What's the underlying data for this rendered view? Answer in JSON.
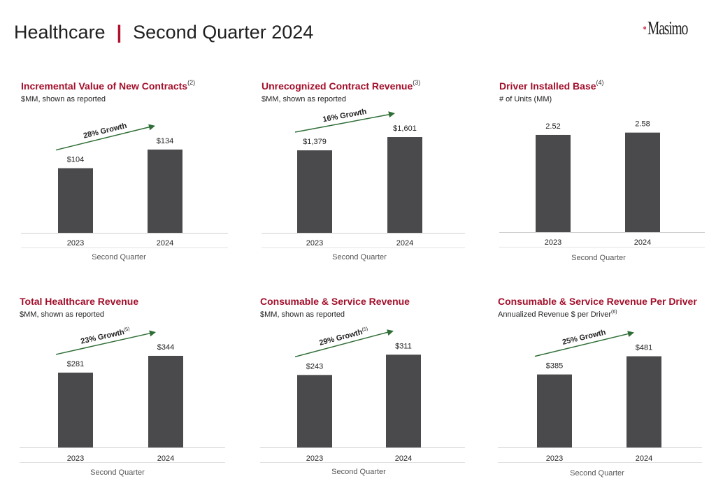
{
  "header": {
    "title": "Healthcare",
    "separator": "|",
    "subtitle": "Second Quarter 2024"
  },
  "logo": {
    "text": "Masimo",
    "icon": "masimo-logo-icon"
  },
  "colors": {
    "bar": "#4a4a4c",
    "title": "#a30f2b",
    "arrow": "#2f6e36",
    "axis": "#cfcfcf"
  },
  "chart_data": [
    {
      "type": "bar",
      "title": "Incremental Value of New Contracts",
      "title_sup": "(2)",
      "subtitle": "$MM, shown as reported",
      "subtitle_sup": "",
      "categories": [
        "2023",
        "2024"
      ],
      "values": [
        104,
        134
      ],
      "labels": [
        "$104",
        "$134"
      ],
      "xlabel": "Second Quarter",
      "growth": "28% Growth",
      "growth_sup": "",
      "ylim": [
        0,
        180
      ]
    },
    {
      "type": "bar",
      "title": "Unrecognized Contract Revenue",
      "title_sup": "(3)",
      "subtitle": "$MM, shown as reported",
      "subtitle_sup": "",
      "categories": [
        "2023",
        "2024"
      ],
      "values": [
        1379,
        1601
      ],
      "labels": [
        "$1,379",
        "$1,601"
      ],
      "xlabel": "Second Quarter",
      "growth": "16% Growth",
      "growth_sup": "",
      "ylim": [
        0,
        1870
      ]
    },
    {
      "type": "bar",
      "title": "Driver Installed Base",
      "title_sup": "(4)",
      "subtitle": "# of Units (MM)",
      "subtitle_sup": "",
      "categories": [
        "2023",
        "2024"
      ],
      "values": [
        2.52,
        2.58
      ],
      "labels": [
        "2.52",
        "2.58"
      ],
      "xlabel": "Second Quarter",
      "growth": "",
      "growth_sup": "",
      "ylim": [
        0,
        2.9
      ]
    },
    {
      "type": "bar",
      "title": "Total Healthcare Revenue",
      "title_sup": "",
      "subtitle": "$MM, shown as reported",
      "subtitle_sup": "",
      "categories": [
        "2023",
        "2024"
      ],
      "values": [
        281,
        344
      ],
      "labels": [
        "$281",
        "$344"
      ],
      "xlabel": "Second Quarter",
      "growth": "23% Growth",
      "growth_sup": "(5)",
      "ylim": [
        0,
        420
      ]
    },
    {
      "type": "bar",
      "title": "Consumable & Service Revenue",
      "title_sup": "",
      "subtitle": "$MM, shown as reported",
      "subtitle_sup": "",
      "categories": [
        "2023",
        "2024"
      ],
      "values": [
        243,
        311
      ],
      "labels": [
        "$243",
        "$311"
      ],
      "xlabel": "Second Quarter",
      "growth": "29% Growth",
      "growth_sup": "(5)",
      "ylim": [
        0,
        375
      ]
    },
    {
      "type": "bar",
      "title": "Consumable & Service Revenue Per Driver",
      "title_sup": "",
      "subtitle": "Annualized Revenue $ per Driver",
      "subtitle_sup": "(6)",
      "categories": [
        "2023",
        "2024"
      ],
      "values": [
        385,
        481
      ],
      "labels": [
        "$385",
        "$481"
      ],
      "xlabel": "Second Quarter",
      "growth": "25% Growth",
      "growth_sup": "",
      "ylim": [
        0,
        590
      ]
    }
  ]
}
